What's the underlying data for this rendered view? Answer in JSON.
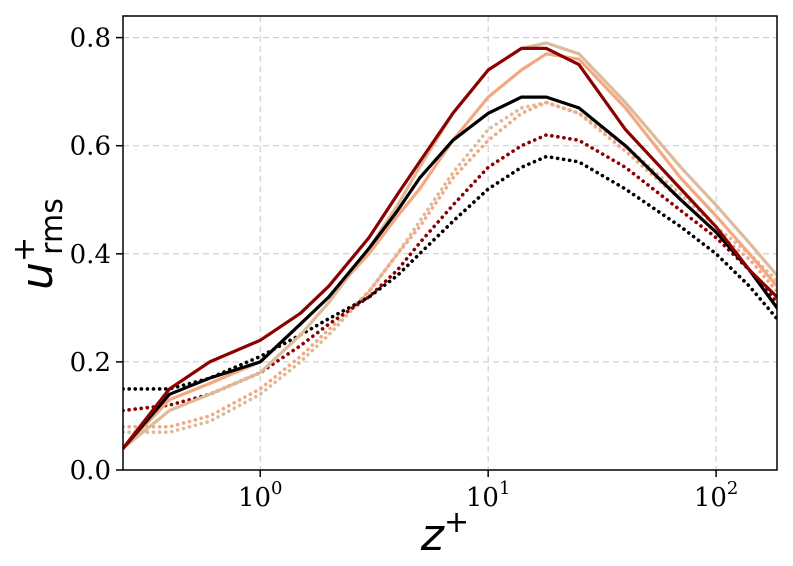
{
  "chart_data": {
    "type": "line",
    "xlabel": "z",
    "xlabel_sup": "+",
    "ylabel": "u",
    "ylabel_sup": "+",
    "ylabel_sub": "rms",
    "xscale": "log",
    "xlim": [
      0.25,
      185
    ],
    "ylim": [
      0.0,
      0.84
    ],
    "grid": true,
    "x_ticks": [
      {
        "value": 1,
        "base": "10",
        "exp": "0"
      },
      {
        "value": 10,
        "base": "10",
        "exp": "1"
      },
      {
        "value": 100,
        "base": "10",
        "exp": "2"
      }
    ],
    "y_ticks": [
      {
        "value": 0.0,
        "label": "0.0"
      },
      {
        "value": 0.2,
        "label": "0.2"
      },
      {
        "value": 0.4,
        "label": "0.4"
      },
      {
        "value": 0.6,
        "label": "0.6"
      },
      {
        "value": 0.8,
        "label": "0.8"
      }
    ],
    "series": [
      {
        "color": "#ddbb9a",
        "style": "dotted",
        "points": [
          [
            0.25,
            0.07
          ],
          [
            0.4,
            0.07
          ],
          [
            0.6,
            0.09
          ],
          [
            1.0,
            0.14
          ],
          [
            1.5,
            0.2
          ],
          [
            2.0,
            0.25
          ],
          [
            3.0,
            0.33
          ],
          [
            4.0,
            0.4
          ],
          [
            5.0,
            0.46
          ],
          [
            7.0,
            0.55
          ],
          [
            10.0,
            0.63
          ],
          [
            14.0,
            0.67
          ],
          [
            18.0,
            0.68
          ],
          [
            25.0,
            0.66
          ],
          [
            40.0,
            0.6
          ],
          [
            70.0,
            0.51
          ],
          [
            100.0,
            0.45
          ],
          [
            140.0,
            0.4
          ],
          [
            185.0,
            0.35
          ]
        ]
      },
      {
        "color": "#f4a882",
        "style": "dotted",
        "points": [
          [
            0.25,
            0.08
          ],
          [
            0.4,
            0.08
          ],
          [
            0.6,
            0.1
          ],
          [
            1.0,
            0.15
          ],
          [
            1.5,
            0.21
          ],
          [
            2.0,
            0.26
          ],
          [
            3.0,
            0.33
          ],
          [
            4.0,
            0.4
          ],
          [
            5.0,
            0.45
          ],
          [
            7.0,
            0.54
          ],
          [
            10.0,
            0.61
          ],
          [
            14.0,
            0.66
          ],
          [
            18.0,
            0.68
          ],
          [
            25.0,
            0.66
          ],
          [
            40.0,
            0.59
          ],
          [
            70.0,
            0.5
          ],
          [
            100.0,
            0.44
          ],
          [
            140.0,
            0.39
          ],
          [
            185.0,
            0.33
          ]
        ]
      },
      {
        "color": "#8b0000",
        "style": "dotted",
        "points": [
          [
            0.25,
            0.11
          ],
          [
            0.4,
            0.12
          ],
          [
            0.6,
            0.14
          ],
          [
            1.0,
            0.18
          ],
          [
            1.5,
            0.23
          ],
          [
            2.0,
            0.27
          ],
          [
            3.0,
            0.32
          ],
          [
            4.0,
            0.37
          ],
          [
            5.0,
            0.42
          ],
          [
            7.0,
            0.49
          ],
          [
            10.0,
            0.56
          ],
          [
            14.0,
            0.6
          ],
          [
            18.0,
            0.62
          ],
          [
            25.0,
            0.61
          ],
          [
            40.0,
            0.56
          ],
          [
            70.0,
            0.48
          ],
          [
            100.0,
            0.43
          ],
          [
            140.0,
            0.37
          ],
          [
            185.0,
            0.31
          ]
        ]
      },
      {
        "color": "#000000",
        "style": "dotted",
        "points": [
          [
            0.25,
            0.15
          ],
          [
            0.4,
            0.15
          ],
          [
            0.6,
            0.17
          ],
          [
            1.0,
            0.21
          ],
          [
            1.5,
            0.25
          ],
          [
            2.0,
            0.28
          ],
          [
            3.0,
            0.32
          ],
          [
            4.0,
            0.36
          ],
          [
            5.0,
            0.4
          ],
          [
            7.0,
            0.46
          ],
          [
            10.0,
            0.52
          ],
          [
            14.0,
            0.56
          ],
          [
            18.0,
            0.58
          ],
          [
            25.0,
            0.57
          ],
          [
            40.0,
            0.52
          ],
          [
            70.0,
            0.45
          ],
          [
            100.0,
            0.4
          ],
          [
            140.0,
            0.34
          ],
          [
            185.0,
            0.28
          ]
        ]
      },
      {
        "color": "#ddbb9a",
        "style": "solid",
        "points": [
          [
            0.25,
            0.04
          ],
          [
            0.4,
            0.11
          ],
          [
            0.6,
            0.14
          ],
          [
            1.0,
            0.18
          ],
          [
            1.5,
            0.25
          ],
          [
            2.0,
            0.31
          ],
          [
            3.0,
            0.41
          ],
          [
            4.0,
            0.49
          ],
          [
            5.0,
            0.56
          ],
          [
            7.0,
            0.66
          ],
          [
            10.0,
            0.74
          ],
          [
            14.0,
            0.78
          ],
          [
            18.0,
            0.79
          ],
          [
            25.0,
            0.77
          ],
          [
            40.0,
            0.68
          ],
          [
            70.0,
            0.56
          ],
          [
            100.0,
            0.49
          ],
          [
            140.0,
            0.42
          ],
          [
            185.0,
            0.36
          ]
        ]
      },
      {
        "color": "#f4a882",
        "style": "solid",
        "points": [
          [
            0.25,
            0.04
          ],
          [
            0.4,
            0.13
          ],
          [
            0.6,
            0.16
          ],
          [
            1.0,
            0.2
          ],
          [
            1.5,
            0.27
          ],
          [
            2.0,
            0.32
          ],
          [
            3.0,
            0.4
          ],
          [
            4.0,
            0.47
          ],
          [
            5.0,
            0.52
          ],
          [
            7.0,
            0.61
          ],
          [
            10.0,
            0.69
          ],
          [
            14.0,
            0.74
          ],
          [
            18.0,
            0.77
          ],
          [
            25.0,
            0.76
          ],
          [
            40.0,
            0.67
          ],
          [
            70.0,
            0.54
          ],
          [
            100.0,
            0.47
          ],
          [
            140.0,
            0.4
          ],
          [
            185.0,
            0.34
          ]
        ]
      },
      {
        "color": "#000000",
        "style": "solid",
        "points": [
          [
            0.25,
            0.04
          ],
          [
            0.4,
            0.14
          ],
          [
            0.6,
            0.17
          ],
          [
            1.0,
            0.2
          ],
          [
            1.5,
            0.27
          ],
          [
            2.0,
            0.32
          ],
          [
            3.0,
            0.41
          ],
          [
            4.0,
            0.48
          ],
          [
            5.0,
            0.54
          ],
          [
            7.0,
            0.61
          ],
          [
            10.0,
            0.66
          ],
          [
            14.0,
            0.69
          ],
          [
            18.0,
            0.69
          ],
          [
            25.0,
            0.67
          ],
          [
            40.0,
            0.6
          ],
          [
            70.0,
            0.5
          ],
          [
            100.0,
            0.44
          ],
          [
            140.0,
            0.37
          ],
          [
            185.0,
            0.3
          ]
        ]
      },
      {
        "color": "#8b0000",
        "style": "solid",
        "points": [
          [
            0.25,
            0.04
          ],
          [
            0.4,
            0.15
          ],
          [
            0.6,
            0.2
          ],
          [
            1.0,
            0.24
          ],
          [
            1.5,
            0.29
          ],
          [
            2.0,
            0.34
          ],
          [
            3.0,
            0.43
          ],
          [
            4.0,
            0.51
          ],
          [
            5.0,
            0.57
          ],
          [
            7.0,
            0.66
          ],
          [
            10.0,
            0.74
          ],
          [
            14.0,
            0.78
          ],
          [
            18.0,
            0.78
          ],
          [
            25.0,
            0.75
          ],
          [
            40.0,
            0.63
          ],
          [
            70.0,
            0.52
          ],
          [
            100.0,
            0.45
          ],
          [
            140.0,
            0.37
          ],
          [
            185.0,
            0.32
          ]
        ]
      }
    ]
  }
}
